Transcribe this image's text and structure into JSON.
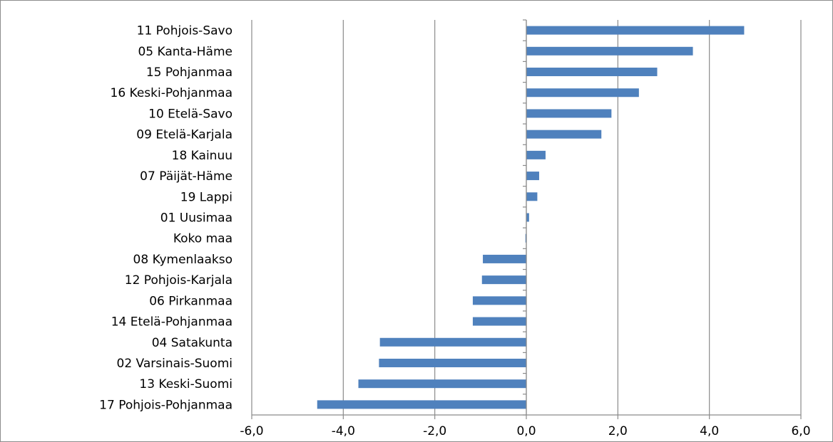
{
  "chart_data": {
    "type": "bar",
    "orientation": "horizontal",
    "categories": [
      "11 Pohjois-Savo",
      "05 Kanta-Häme",
      "15 Pohjanmaa",
      "16 Keski-Pohjanmaa",
      "10 Etelä-Savo",
      "09 Etelä-Karjala",
      "18 Kainuu",
      "07 Päijät-Häme",
      "19 Lappi",
      "01 Uusimaa",
      "Koko maa",
      "08 Kymenlaakso",
      "12 Pohjois-Karjala",
      "06 Pirkanmaa",
      "14 Etelä-Pohjanmaa",
      "04 Satakunta",
      "02 Varsinais-Suomi",
      "13 Keski-Suomi",
      "17 Pohjois-Pohjanmaa"
    ],
    "values": [
      4.76,
      3.64,
      2.86,
      2.46,
      1.86,
      1.64,
      0.42,
      0.28,
      0.24,
      0.06,
      -0.02,
      -0.95,
      -0.97,
      -1.17,
      -1.17,
      -3.2,
      -3.22,
      -3.67,
      -4.57
    ],
    "xlim": [
      -6,
      6
    ],
    "xticks": [
      "-6,0",
      "-4,0",
      "-2,0",
      "0,0",
      "2,0",
      "4,0",
      "6,0"
    ],
    "grid": true,
    "bar_color": "#4F81BD",
    "title": "",
    "xlabel": "",
    "ylabel": ""
  }
}
